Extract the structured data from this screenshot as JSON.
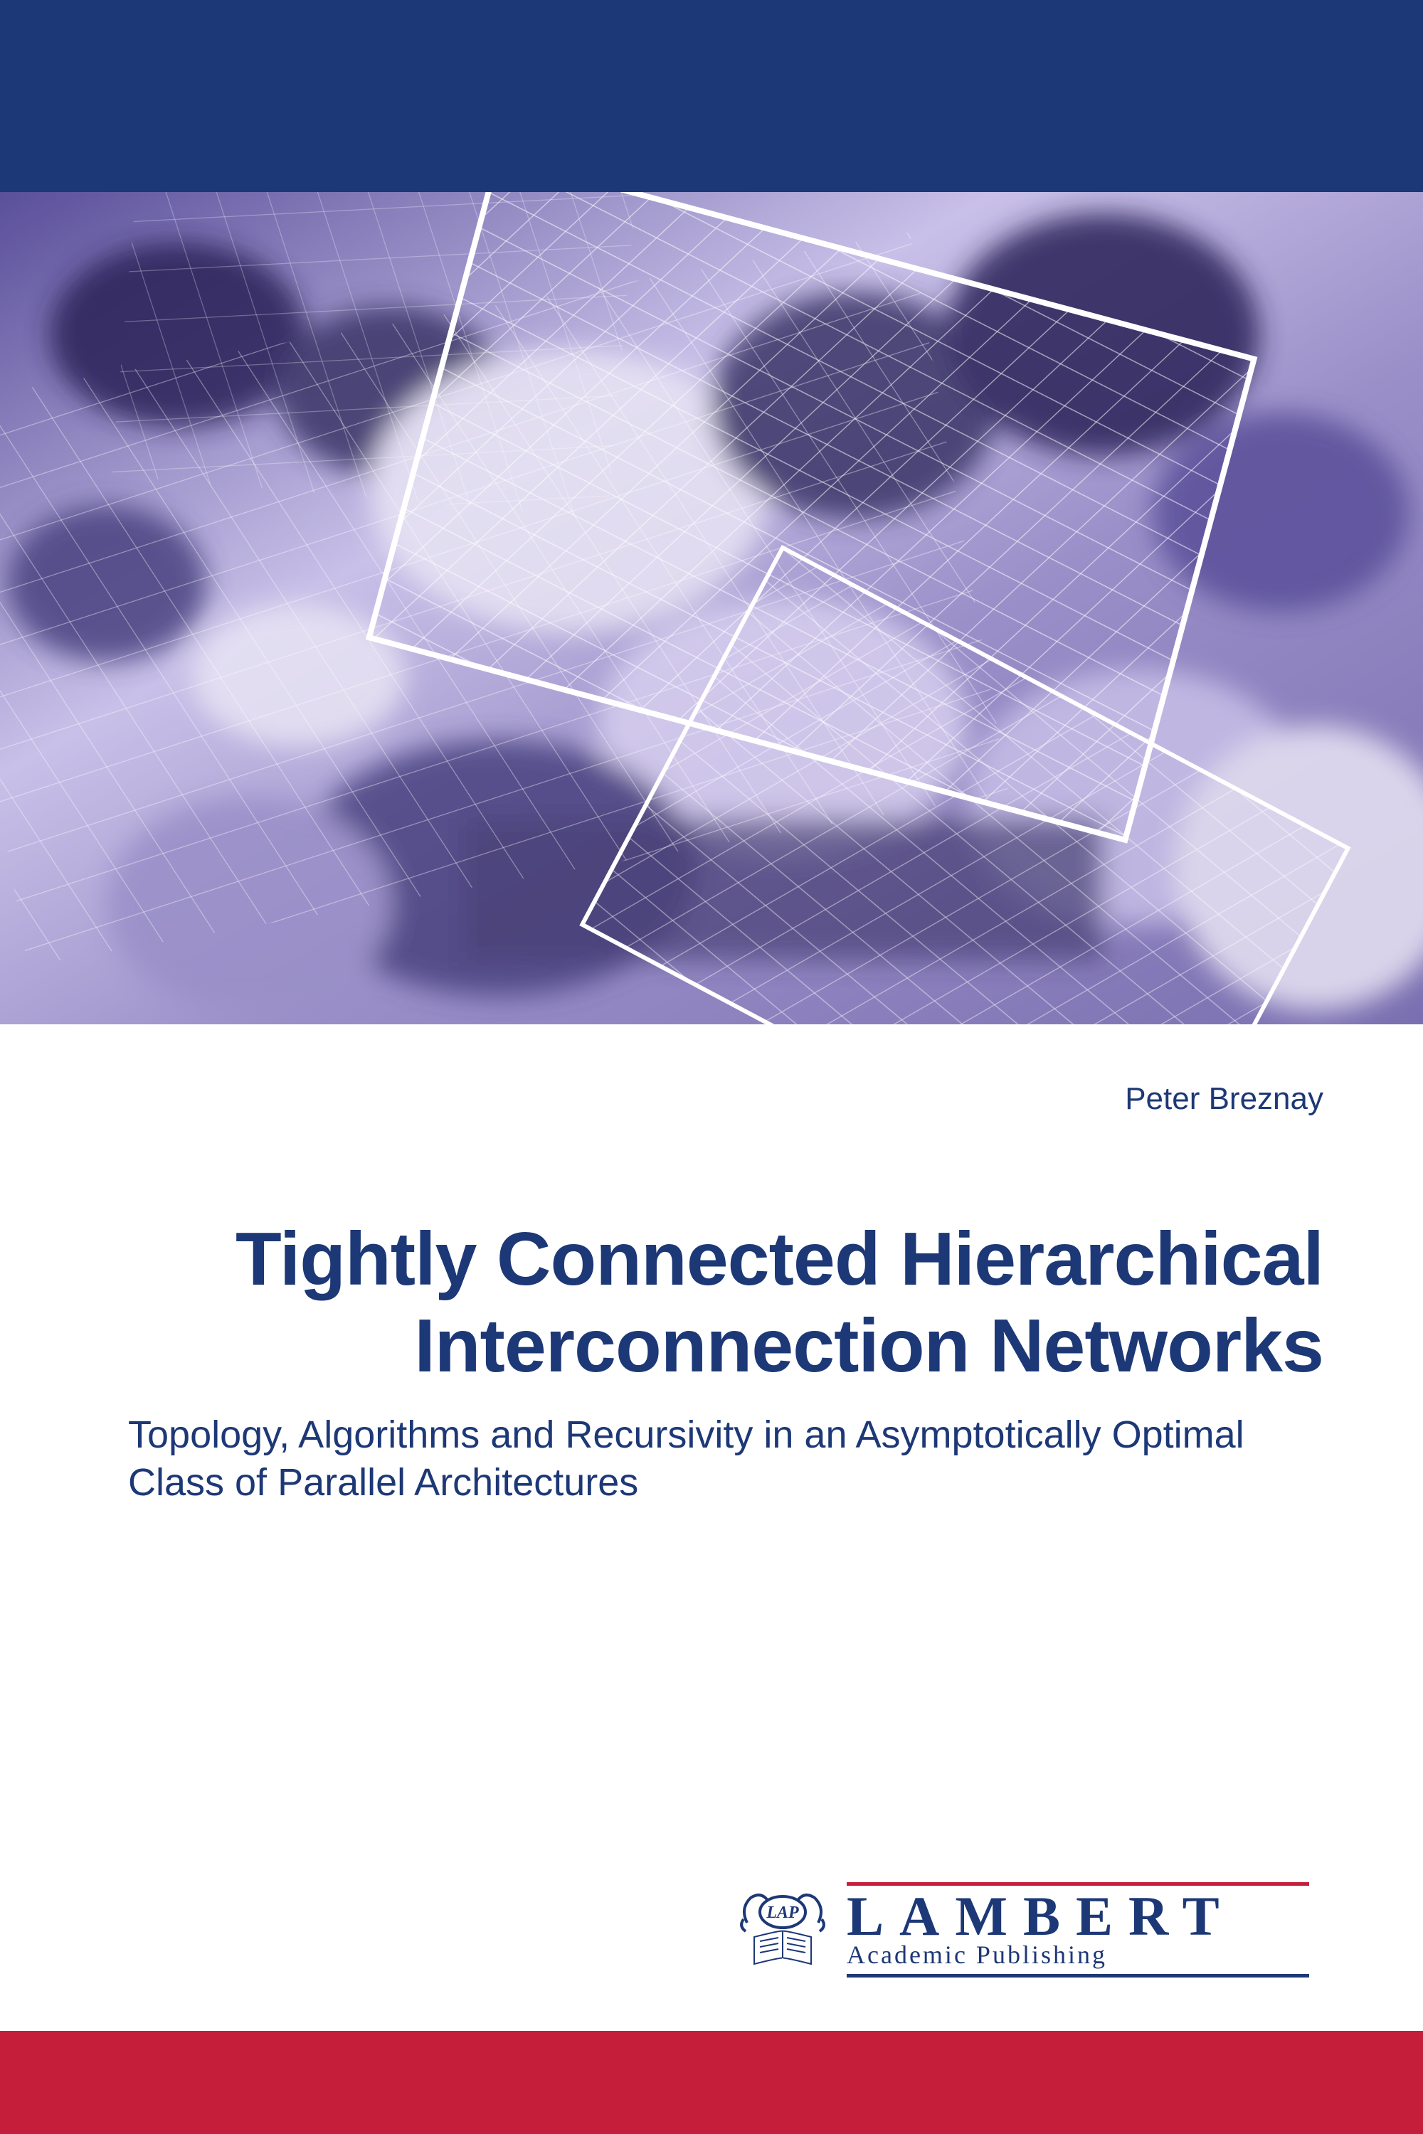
{
  "colors": {
    "top_bar": "#1d3876",
    "bottom_bar": "#c41e3a",
    "text": "#1d3876",
    "hero_bg": "#b8b2d8",
    "hero_dark": "#3a3568",
    "hero_light": "#e8e4f4",
    "hero_mid": "#7a6fb0",
    "grid_line": "#ffffff"
  },
  "layout": {
    "top_bar_height": 270,
    "hero_height": 1170,
    "bottom_bar_height": 145
  },
  "author": "Peter Breznay",
  "title": "Tightly Connected Hierarchical Interconnection Networks",
  "subtitle": "Topology, Algorithms and Recursivity in an Asymptotically Optimal Class of Parallel Architectures",
  "publisher": {
    "badge": "LAP",
    "name": "LAMBERT",
    "sub": "Academic Publishing"
  }
}
